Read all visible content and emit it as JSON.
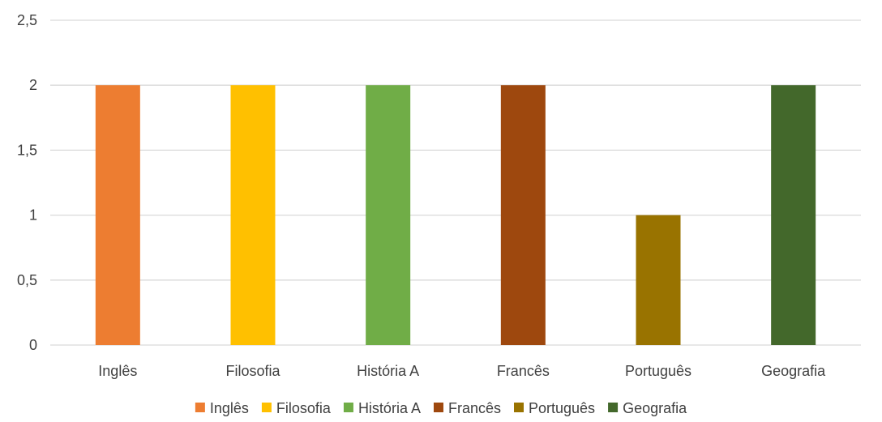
{
  "chart_data": {
    "type": "bar",
    "categories": [
      "Inglês",
      "Filosofia",
      "História A",
      "Francês",
      "Português",
      "Geografia"
    ],
    "values": [
      2,
      2,
      2,
      2,
      1,
      2
    ],
    "colors": [
      "#ed7d31",
      "#ffc000",
      "#70ad47",
      "#9e480e",
      "#997300",
      "#43682b"
    ],
    "title": "",
    "xlabel": "",
    "ylabel": "",
    "ylim": [
      0,
      2.5
    ],
    "yticks": [
      "0",
      "0,5",
      "1",
      "1,5",
      "2",
      "2,5"
    ],
    "grid": true,
    "legend": {
      "position": "bottom",
      "entries": [
        "Inglês",
        "Filosofia",
        "História A",
        "Francês",
        "Português",
        "Geografia"
      ]
    }
  }
}
